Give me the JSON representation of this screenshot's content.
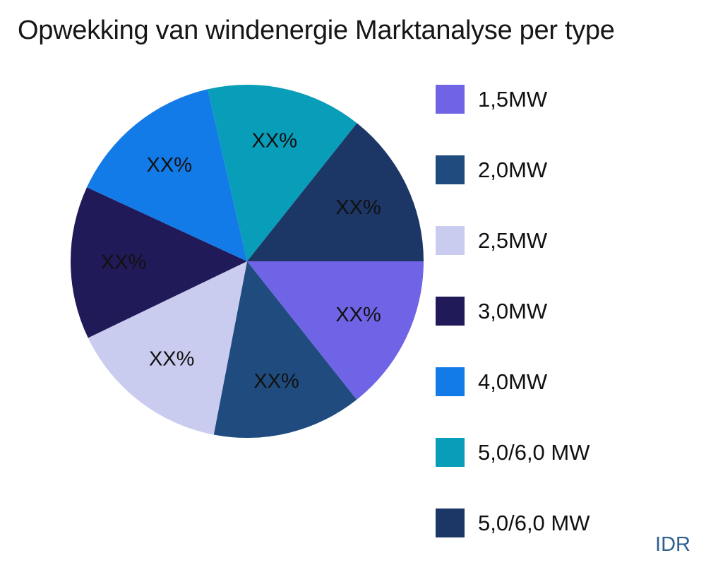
{
  "page": {
    "background_color": "#ffffff",
    "text_color": "#111111"
  },
  "watermark": {
    "text": "IDR",
    "color": "#2E5F8F"
  },
  "chart_data": {
    "type": "pie",
    "title": "Opwekking van windenergie Marktanalyse per type",
    "legend_position": "right",
    "start_angle_deg": 0,
    "direction": "clockwise",
    "data_label_text": "XX%",
    "slices": [
      {
        "label": "1,5MW",
        "color": "#7064E6",
        "arc_deg": 51.6,
        "value_pct_est": 14.3,
        "data_label": "XX%"
      },
      {
        "label": "2,0MW",
        "color": "#1F4B7E",
        "arc_deg": 49.3,
        "value_pct_est": 13.7,
        "data_label": "XX%"
      },
      {
        "label": "2,5MW",
        "color": "#C9CCEF",
        "arc_deg": 53.4,
        "value_pct_est": 14.8,
        "data_label": "XX%"
      },
      {
        "label": "3,0MW",
        "color": "#211A58",
        "arc_deg": 50.5,
        "value_pct_est": 14.0,
        "data_label": "XX%"
      },
      {
        "label": "4,0MW",
        "color": "#137BE8",
        "arc_deg": 52.3,
        "value_pct_est": 14.5,
        "data_label": "XX%"
      },
      {
        "label": "5,0/6,0 MW",
        "color": "#089DB8",
        "arc_deg": 51.4,
        "value_pct_est": 14.3,
        "data_label": "XX%"
      },
      {
        "label": "5,0/6,0 MW",
        "color": "#1C3666",
        "arc_deg": 51.5,
        "value_pct_est": 14.3,
        "data_label": "XX%"
      }
    ]
  }
}
